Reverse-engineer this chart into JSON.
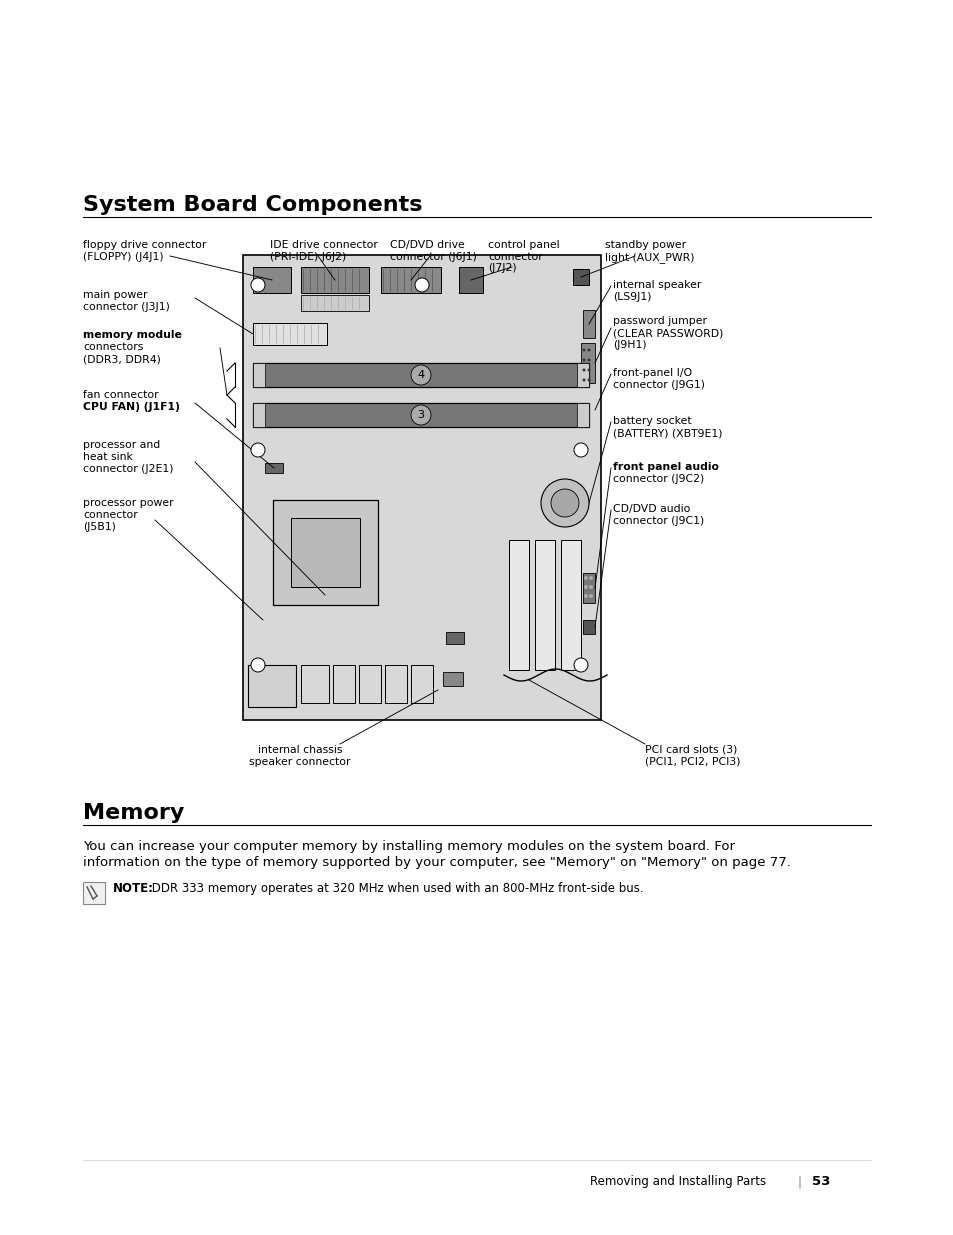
{
  "page_bg": "#ffffff",
  "title1": "System Board Components",
  "title2": "Memory",
  "memory_text1": "You can increase your computer memory by installing memory modules on the system board. For",
  "memory_text2": "information on the type of memory supported by your computer, see \"Memory\" on \"Memory\" on page 77.",
  "note_bold": "NOTE:",
  "note_rest": " DDR 333 memory operates at 320 MHz when used with an 800-MHz front-side bus.",
  "footer_text": "Removing and Installing Parts",
  "page_num": "53"
}
